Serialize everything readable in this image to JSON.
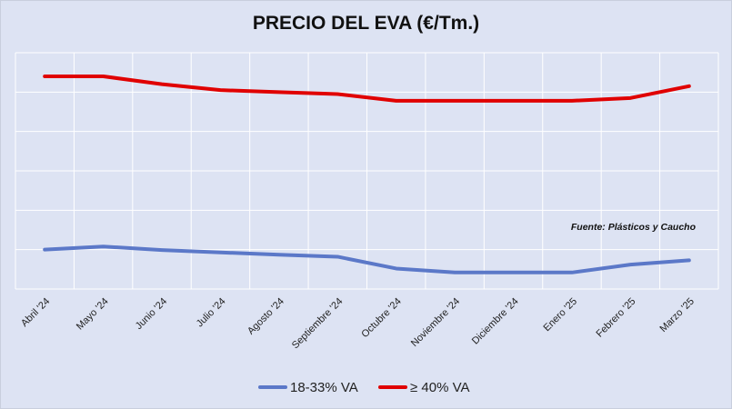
{
  "chart_data": {
    "type": "line",
    "title": "PRECIO DEL EVA (€/Tm.)",
    "xlabel": "",
    "ylabel": "",
    "categories": [
      "Abril '24",
      "Mayo '24",
      "Junio '24",
      "Julio '24",
      "Agosto '24",
      "Septiembre '24",
      "Octubre '24",
      "Noviembre '24",
      "Diciembre '24",
      "Enero '25",
      "Febrero '25",
      "Marzo '25"
    ],
    "ylim": [
      0,
      6
    ],
    "yticks_labeled": false,
    "grid": true,
    "legend_position": "bottom",
    "series": [
      {
        "name": "18-33% VA",
        "color": "#5b78c8",
        "values": [
          1.0,
          1.08,
          0.99,
          0.93,
          0.87,
          0.82,
          0.52,
          0.42,
          0.42,
          0.42,
          0.62,
          0.73
        ]
      },
      {
        "name": "≥ 40% VA",
        "color": "#e00000",
        "values": [
          5.4,
          5.4,
          5.2,
          5.05,
          5.0,
          4.95,
          4.78,
          4.78,
          4.78,
          4.78,
          4.85,
          5.15
        ]
      }
    ],
    "annotations": [
      "Fuente: Plásticos y Caucho"
    ]
  }
}
